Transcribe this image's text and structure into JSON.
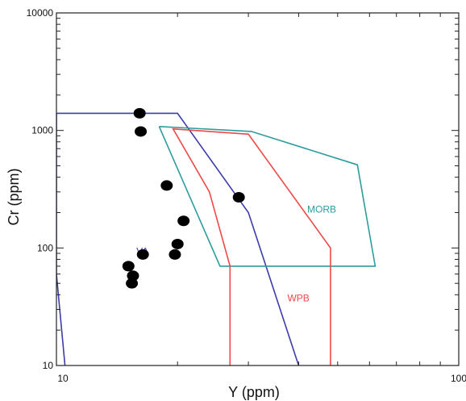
{
  "chart_data": {
    "type": "scatter",
    "title": "",
    "xlabel": "Y (ppm)",
    "ylabel": "Cr (ppm)",
    "xscale": "log",
    "yscale": "log",
    "xlim": [
      10,
      100
    ],
    "ylim": [
      10,
      10000
    ],
    "x_tick_labels": [
      {
        "value": 10,
        "label": "10"
      },
      {
        "value": 100,
        "label": "100"
      }
    ],
    "y_tick_labels": [
      {
        "value": 10,
        "label": "10"
      },
      {
        "value": 100,
        "label": "100"
      },
      {
        "value": 1000,
        "label": "1000"
      },
      {
        "value": 10000,
        "label": "10000"
      }
    ],
    "grid": false,
    "points": [
      {
        "x": 16.1,
        "y": 1400
      },
      {
        "x": 16.2,
        "y": 980
      },
      {
        "x": 18.8,
        "y": 340
      },
      {
        "x": 28.4,
        "y": 270
      },
      {
        "x": 20.7,
        "y": 170
      },
      {
        "x": 20.0,
        "y": 108
      },
      {
        "x": 16.4,
        "y": 88
      },
      {
        "x": 19.7,
        "y": 88
      },
      {
        "x": 15.1,
        "y": 70
      },
      {
        "x": 15.5,
        "y": 58
      },
      {
        "x": 15.4,
        "y": 50
      }
    ],
    "marker_color": "#000000",
    "regions": [
      {
        "name": "VAB",
        "label": "VA",
        "color": "#3c3caa",
        "label_pos": {
          "x": 15.8,
          "y": 88
        },
        "path": [
          {
            "x": 10.5,
            "y": 10
          },
          {
            "x": 10,
            "y": 60
          },
          {
            "x": 10,
            "y": 1400
          },
          {
            "x": 20,
            "y": 1400
          },
          {
            "x": 30,
            "y": 200
          },
          {
            "x": 40,
            "y": 10
          }
        ]
      },
      {
        "name": "MORB",
        "label": "MORB",
        "color": "#2e9c9c",
        "label_pos": {
          "x": 42,
          "y": 200
        },
        "path": [
          {
            "x": 18,
            "y": 1080
          },
          {
            "x": 30.5,
            "y": 980
          },
          {
            "x": 56,
            "y": 510
          },
          {
            "x": 62,
            "y": 70
          },
          {
            "x": 25.5,
            "y": 70
          },
          {
            "x": 18,
            "y": 1080
          }
        ]
      },
      {
        "name": "WPB",
        "label": "WPB",
        "color": "#f04848",
        "label_pos": {
          "x": 37.5,
          "y": 35
        },
        "path": [
          {
            "x": 27,
            "y": 10
          },
          {
            "x": 27,
            "y": 70
          },
          {
            "x": 24,
            "y": 300
          },
          {
            "x": 19.5,
            "y": 1030
          },
          {
            "x": 30,
            "y": 930
          },
          {
            "x": 48,
            "y": 100
          },
          {
            "x": 48,
            "y": 10
          }
        ]
      }
    ]
  }
}
